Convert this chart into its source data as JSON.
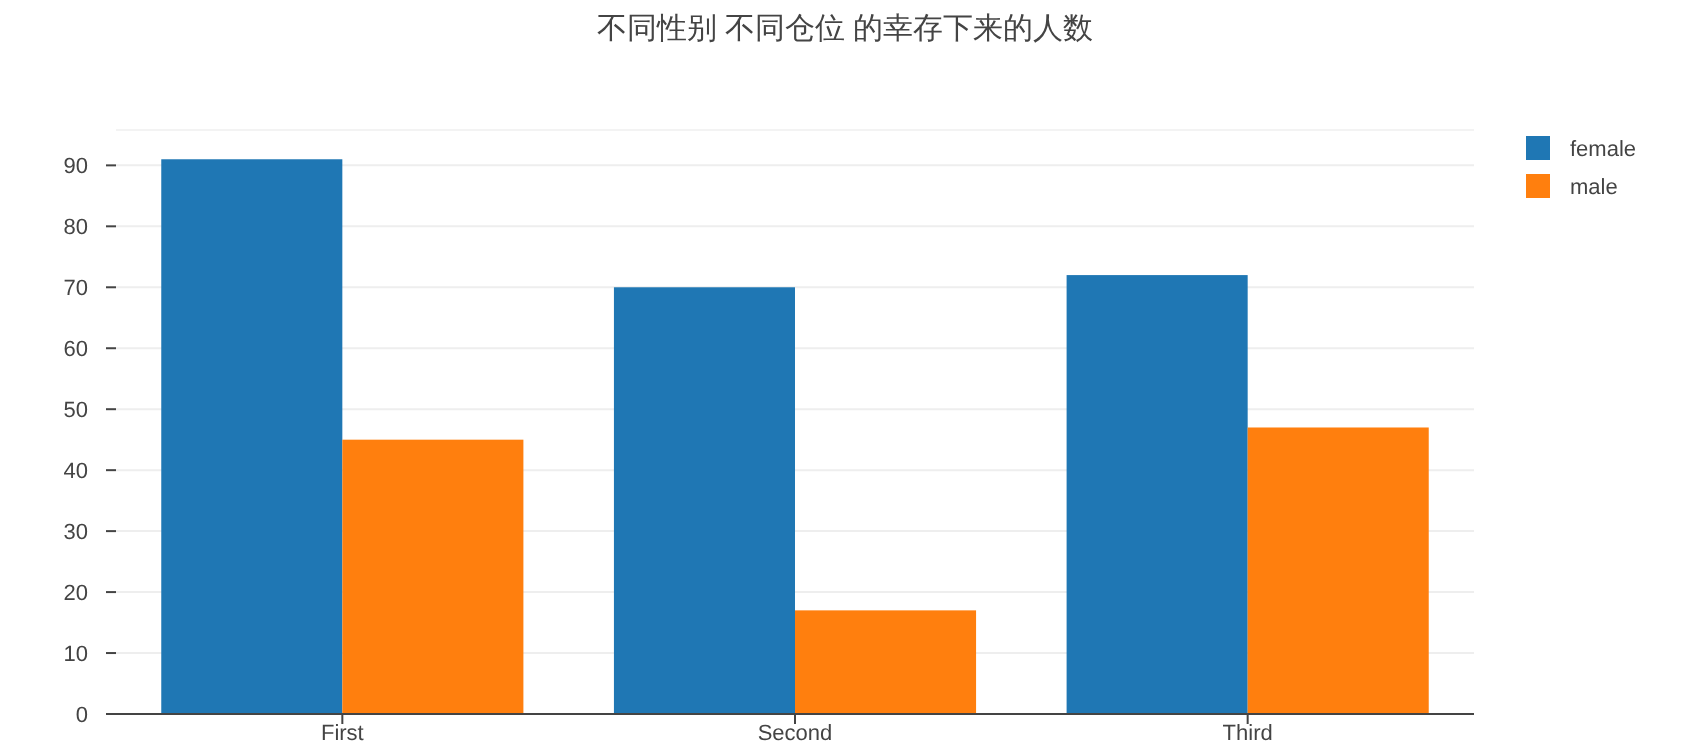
{
  "chart_data": {
    "type": "bar",
    "title": "不同性别 不同仓位 的幸存下来的人数",
    "categories": [
      "First",
      "Second",
      "Third"
    ],
    "series": [
      {
        "name": "female",
        "color": "#1f77b4",
        "values": [
          91,
          70,
          72
        ]
      },
      {
        "name": "male",
        "color": "#ff7f0e",
        "values": [
          45,
          17,
          47
        ]
      }
    ],
    "ylim": [
      0,
      95.8
    ],
    "yticks": [
      0,
      10,
      20,
      30,
      40,
      50,
      60,
      70,
      80,
      90
    ],
    "grid": "y",
    "legend": "top right"
  }
}
